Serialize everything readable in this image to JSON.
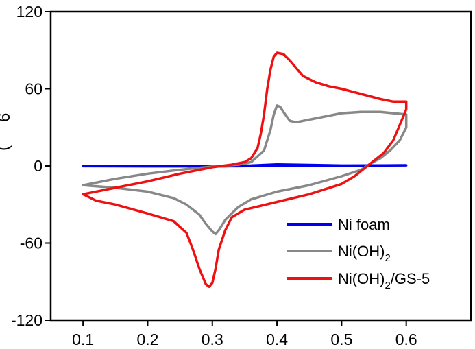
{
  "chart_data": {
    "type": "line",
    "title": "",
    "xlabel": "",
    "ylabel_visible_fragments": [
      "6",
      "("
    ],
    "xlim": [
      0.05,
      0.7
    ],
    "ylim": [
      -120,
      120
    ],
    "x_ticks": [
      0.1,
      0.2,
      0.3,
      0.4,
      0.5,
      0.6
    ],
    "x_tick_labels": [
      "0.1",
      "0.2",
      "0.3",
      "0.4",
      "0.5",
      "0.6"
    ],
    "y_ticks": [
      -120,
      -60,
      0,
      60,
      120
    ],
    "y_tick_labels": [
      "-120",
      "-60",
      "0",
      "60",
      "120"
    ],
    "grid": false,
    "legend_position": "bottom-right",
    "series": [
      {
        "name": "Ni foam",
        "color": "#0000ee",
        "points": [
          [
            0.1,
            0
          ],
          [
            0.2,
            0
          ],
          [
            0.3,
            0
          ],
          [
            0.36,
            0.3
          ],
          [
            0.4,
            1.2
          ],
          [
            0.45,
            0.8
          ],
          [
            0.5,
            0.3
          ],
          [
            0.6,
            0.5
          ],
          [
            0.5,
            0.2
          ],
          [
            0.4,
            0
          ],
          [
            0.3,
            -0.3
          ],
          [
            0.2,
            -0.3
          ],
          [
            0.1,
            -0.2
          ]
        ]
      },
      {
        "name": "Ni(OH)",
        "name_subscript": "2",
        "color": "#888888",
        "points": [
          [
            0.1,
            -15
          ],
          [
            0.15,
            -10
          ],
          [
            0.2,
            -6
          ],
          [
            0.25,
            -3
          ],
          [
            0.3,
            -0.5
          ],
          [
            0.34,
            1
          ],
          [
            0.36,
            3
          ],
          [
            0.38,
            12
          ],
          [
            0.39,
            28
          ],
          [
            0.395,
            40
          ],
          [
            0.4,
            47
          ],
          [
            0.405,
            46
          ],
          [
            0.41,
            42
          ],
          [
            0.42,
            35
          ],
          [
            0.43,
            34
          ],
          [
            0.45,
            36
          ],
          [
            0.48,
            39
          ],
          [
            0.5,
            41
          ],
          [
            0.53,
            42
          ],
          [
            0.56,
            42
          ],
          [
            0.58,
            41
          ],
          [
            0.6,
            40
          ],
          [
            0.6,
            30
          ],
          [
            0.59,
            20
          ],
          [
            0.575,
            12
          ],
          [
            0.56,
            6
          ],
          [
            0.545,
            2
          ],
          [
            0.53,
            -3
          ],
          [
            0.5,
            -8
          ],
          [
            0.45,
            -15
          ],
          [
            0.4,
            -20
          ],
          [
            0.36,
            -26
          ],
          [
            0.34,
            -32
          ],
          [
            0.32,
            -42
          ],
          [
            0.31,
            -50
          ],
          [
            0.305,
            -53
          ],
          [
            0.3,
            -51
          ],
          [
            0.29,
            -45
          ],
          [
            0.28,
            -38
          ],
          [
            0.26,
            -30
          ],
          [
            0.24,
            -25
          ],
          [
            0.2,
            -20
          ],
          [
            0.15,
            -17
          ],
          [
            0.1,
            -15
          ]
        ]
      },
      {
        "name": "Ni(OH)",
        "name_subscript": "2",
        "name_suffix": "/GS-5",
        "color": "#ee1111",
        "points": [
          [
            0.1,
            -22
          ],
          [
            0.15,
            -17
          ],
          [
            0.2,
            -12
          ],
          [
            0.25,
            -6
          ],
          [
            0.3,
            -1
          ],
          [
            0.33,
            1
          ],
          [
            0.35,
            3
          ],
          [
            0.36,
            6
          ],
          [
            0.37,
            14
          ],
          [
            0.375,
            25
          ],
          [
            0.38,
            40
          ],
          [
            0.385,
            60
          ],
          [
            0.39,
            75
          ],
          [
            0.395,
            85
          ],
          [
            0.4,
            88
          ],
          [
            0.41,
            87
          ],
          [
            0.42,
            82
          ],
          [
            0.43,
            76
          ],
          [
            0.44,
            70
          ],
          [
            0.46,
            65
          ],
          [
            0.48,
            62
          ],
          [
            0.5,
            60
          ],
          [
            0.53,
            56
          ],
          [
            0.56,
            52
          ],
          [
            0.58,
            50
          ],
          [
            0.6,
            50
          ],
          [
            0.6,
            44
          ],
          [
            0.59,
            32
          ],
          [
            0.58,
            20
          ],
          [
            0.565,
            10
          ],
          [
            0.55,
            4
          ],
          [
            0.535,
            -2
          ],
          [
            0.52,
            -8
          ],
          [
            0.5,
            -14
          ],
          [
            0.45,
            -22
          ],
          [
            0.4,
            -28
          ],
          [
            0.35,
            -34
          ],
          [
            0.33,
            -40
          ],
          [
            0.32,
            -50
          ],
          [
            0.31,
            -65
          ],
          [
            0.305,
            -80
          ],
          [
            0.3,
            -91
          ],
          [
            0.295,
            -94
          ],
          [
            0.29,
            -92
          ],
          [
            0.28,
            -80
          ],
          [
            0.27,
            -65
          ],
          [
            0.26,
            -52
          ],
          [
            0.24,
            -43
          ],
          [
            0.2,
            -37
          ],
          [
            0.15,
            -30
          ],
          [
            0.12,
            -27
          ],
          [
            0.1,
            -22
          ]
        ]
      }
    ]
  }
}
